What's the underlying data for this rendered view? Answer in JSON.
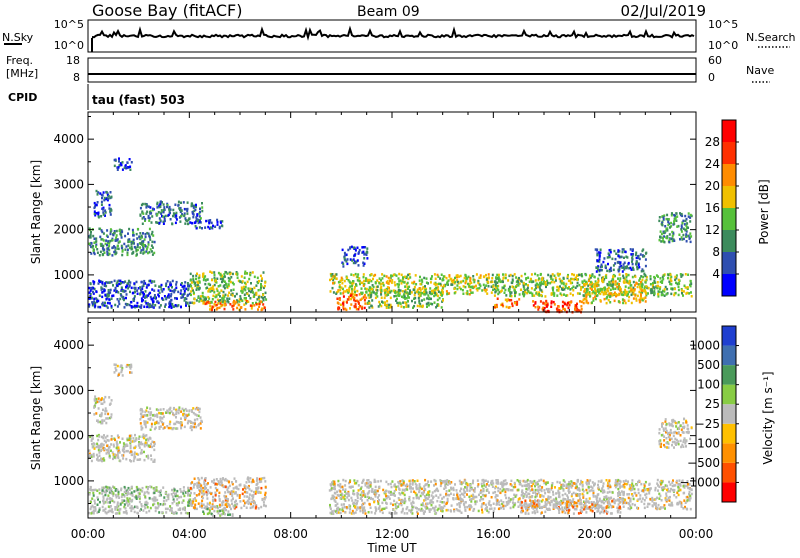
{
  "header": {
    "station": "Goose Bay (fitACF)",
    "beam": "Beam 09",
    "date": "02/Jul/2019"
  },
  "status_panels": {
    "nsky_label": "N.Sky",
    "nsearch_label": "N.Search",
    "nsky_ticks": [
      "10^5",
      "10^0"
    ],
    "freq_label_1": "Freq.",
    "freq_label_2": "[MHz]",
    "freq_ticks": [
      "18",
      "8"
    ],
    "nave_label": "Nave",
    "nave_ticks": [
      "60",
      "0"
    ],
    "cpid_label": "CPID",
    "cpid_text": "tau (fast) 503"
  },
  "colors": {
    "power": [
      "#0000ff",
      "#2f4fb0",
      "#3c8b5c",
      "#56c13a",
      "#f0c000",
      "#ff8c00",
      "#ff3000",
      "#ff0000"
    ],
    "velocity": [
      "#ff0000",
      "#ff5000",
      "#ff9000",
      "#ffc000",
      "#bbbbbb",
      "#88cc44",
      "#4a9a5a",
      "#3f6fb0",
      "#1f3fd0"
    ]
  },
  "chart_data": [
    {
      "type": "heatmap",
      "name": "power",
      "ylabel": "Slant Range [km]",
      "ylim": [
        180,
        4600
      ],
      "yticks": [
        "1000",
        "2000",
        "3000",
        "4000"
      ],
      "xlim": [
        0,
        24
      ],
      "xticks": [
        "00:00",
        "04:00",
        "08:00",
        "12:00",
        "16:00",
        "20:00",
        "00:00"
      ],
      "colorbar_label": "Power [dB]",
      "colorbar_ticks": [
        "4",
        "8",
        "12",
        "16",
        "20",
        "24",
        "28"
      ],
      "colorbar_range": [
        0,
        32
      ],
      "regions": [
        {
          "t": [
            0.0,
            2.6
          ],
          "r": [
            1450,
            2050
          ],
          "level": 10
        },
        {
          "t": [
            0.2,
            0.9
          ],
          "r": [
            2300,
            2900
          ],
          "level": 6
        },
        {
          "t": [
            1.0,
            1.7
          ],
          "r": [
            3350,
            3600
          ],
          "level": 5
        },
        {
          "t": [
            2.0,
            4.5
          ],
          "r": [
            2150,
            2650
          ],
          "level": 8
        },
        {
          "t": [
            4.2,
            5.3
          ],
          "r": [
            2050,
            2250
          ],
          "level": 5
        },
        {
          "t": [
            0.0,
            4.0
          ],
          "r": [
            300,
            900
          ],
          "level": 6
        },
        {
          "t": [
            4.0,
            7.0
          ],
          "r": [
            400,
            1100
          ],
          "level": 14
        },
        {
          "t": [
            4.5,
            7.0
          ],
          "r": [
            250,
            450
          ],
          "level": 22
        },
        {
          "t": [
            9.5,
            16.0
          ],
          "r": [
            600,
            1050
          ],
          "level": 16
        },
        {
          "t": [
            9.8,
            11.0
          ],
          "r": [
            250,
            600
          ],
          "level": 24
        },
        {
          "t": [
            11.0,
            14.0
          ],
          "r": [
            300,
            700
          ],
          "level": 14
        },
        {
          "t": [
            16.0,
            23.8
          ],
          "r": [
            550,
            1050
          ],
          "level": 14
        },
        {
          "t": [
            16.0,
            17.0
          ],
          "r": [
            300,
            500
          ],
          "level": 22
        },
        {
          "t": [
            17.5,
            19.5
          ],
          "r": [
            200,
            450
          ],
          "level": 26
        },
        {
          "t": [
            19.5,
            22.0
          ],
          "r": [
            400,
            900
          ],
          "level": 18
        },
        {
          "t": [
            20.0,
            22.0
          ],
          "r": [
            1100,
            1600
          ],
          "level": 7
        },
        {
          "t": [
            22.5,
            23.8
          ],
          "r": [
            1750,
            2400
          ],
          "level": 10
        },
        {
          "t": [
            10.0,
            11.0
          ],
          "r": [
            1200,
            1650
          ],
          "level": 6
        }
      ]
    },
    {
      "type": "heatmap",
      "name": "velocity",
      "ylabel": "Slant Range [km]",
      "xlabel": "Time UT",
      "ylim": [
        180,
        4600
      ],
      "yticks": [
        "1000",
        "2000",
        "3000",
        "4000"
      ],
      "xlim": [
        0,
        24
      ],
      "xticks": [
        "00:00",
        "04:00",
        "08:00",
        "12:00",
        "16:00",
        "20:00",
        "00:00"
      ],
      "colorbar_label": "Velocity [m s⁻¹]",
      "colorbar_ticks": [
        "1000",
        "500",
        "100",
        "25",
        "−25",
        "−100",
        "−500",
        "−1000"
      ],
      "colorbar_range": [
        -1000,
        1000
      ],
      "regions": [
        {
          "t": [
            0.0,
            2.6
          ],
          "r": [
            1450,
            2050
          ],
          "v": 0
        },
        {
          "t": [
            0.2,
            0.9
          ],
          "r": [
            2300,
            2900
          ],
          "v": 0
        },
        {
          "t": [
            1.0,
            1.7
          ],
          "r": [
            3350,
            3600
          ],
          "v": 0
        },
        {
          "t": [
            2.0,
            4.5
          ],
          "r": [
            2150,
            2650
          ],
          "v": 0
        },
        {
          "t": [
            0.0,
            4.0
          ],
          "r": [
            300,
            900
          ],
          "v": 80
        },
        {
          "t": [
            4.0,
            7.0
          ],
          "r": [
            400,
            1100
          ],
          "v": -60
        },
        {
          "t": [
            4.5,
            5.8
          ],
          "r": [
            250,
            500
          ],
          "v": 120
        },
        {
          "t": [
            9.5,
            16.0
          ],
          "r": [
            300,
            1050
          ],
          "v": 0
        },
        {
          "t": [
            16.0,
            23.8
          ],
          "r": [
            400,
            1050
          ],
          "v": 0
        },
        {
          "t": [
            17.0,
            21.0
          ],
          "r": [
            300,
            600
          ],
          "v": -120
        },
        {
          "t": [
            22.5,
            23.8
          ],
          "r": [
            1750,
            2400
          ],
          "v": 0
        }
      ]
    }
  ]
}
